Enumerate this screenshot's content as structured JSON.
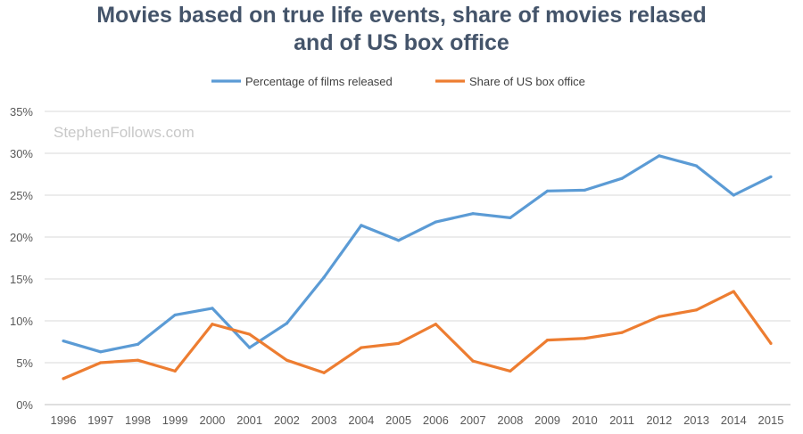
{
  "chart_data": {
    "type": "line",
    "title_line1": "Movies based on true life events, share of movies relased",
    "title_line2": "and of US box office",
    "watermark": "StephenFollows.com",
    "xlabel": "",
    "ylabel": "",
    "ylim": [
      0,
      35
    ],
    "y_ticks": [
      "0%",
      "5%",
      "10%",
      "15%",
      "20%",
      "25%",
      "30%",
      "35%"
    ],
    "categories": [
      "1996",
      "1997",
      "1998",
      "1999",
      "2000",
      "2001",
      "2002",
      "2003",
      "2004",
      "2005",
      "2006",
      "2007",
      "2008",
      "2009",
      "2010",
      "2011",
      "2012",
      "2013",
      "2014",
      "2015"
    ],
    "legend_position": "top",
    "grid": true,
    "series": [
      {
        "name": "Percentage of films released",
        "color": "#5b9bd5",
        "values": [
          7.6,
          6.3,
          7.2,
          10.7,
          11.5,
          6.8,
          9.7,
          15.2,
          21.4,
          19.6,
          21.8,
          22.8,
          22.3,
          25.5,
          25.6,
          27.0,
          29.7,
          28.5,
          25.0,
          27.2
        ]
      },
      {
        "name": "Share of US box office",
        "color": "#ed7d31",
        "values": [
          3.1,
          5.0,
          5.3,
          4.0,
          9.6,
          8.4,
          5.3,
          3.8,
          6.8,
          7.3,
          9.6,
          5.2,
          4.0,
          7.7,
          7.9,
          8.6,
          10.5,
          11.3,
          13.5,
          7.3
        ]
      }
    ]
  }
}
